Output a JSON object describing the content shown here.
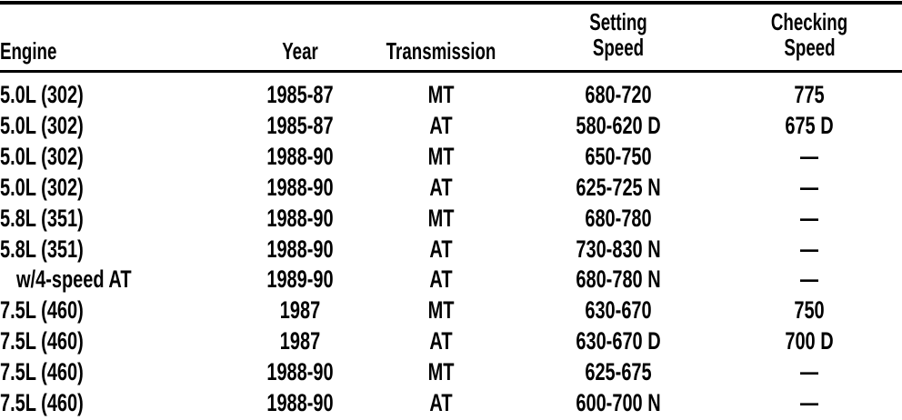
{
  "table": {
    "headers": [
      "Engine",
      "Year",
      "Transmission",
      "Setting Speed",
      "Checking Speed"
    ],
    "header_lines": [
      [
        "Engine"
      ],
      [
        "Year"
      ],
      [
        "Transmission"
      ],
      [
        "Setting",
        "Speed"
      ],
      [
        "Checking",
        "Speed"
      ]
    ],
    "rows": [
      [
        "5.0L (302)",
        "1985-87",
        "MT",
        "680-720",
        "775"
      ],
      [
        "5.0L (302)",
        "1985-87",
        "AT",
        "580-620 D",
        "675 D"
      ],
      [
        "5.0L (302)",
        "1988-90",
        "MT",
        "650-750",
        "—"
      ],
      [
        "5.0L (302)",
        "1988-90",
        "AT",
        "625-725 N",
        "—"
      ],
      [
        "5.8L (351)",
        "1988-90",
        "MT",
        "680-780",
        "—"
      ],
      [
        "5.8L (351)",
        "1988-90",
        "AT",
        "730-830 N",
        "—"
      ],
      [
        "w/4-speed AT",
        "1989-90",
        "AT",
        "680-780 N",
        "—"
      ],
      [
        "7.5L (460)",
        "1987",
        "MT",
        "630-670",
        "750"
      ],
      [
        "7.5L (460)",
        "1987",
        "AT",
        "630-670 D",
        "700 D"
      ],
      [
        "7.5L (460)",
        "1988-90",
        "MT",
        "625-675",
        "—"
      ],
      [
        "7.5L (460)",
        "1988-90",
        "AT",
        "600-700 N",
        "—"
      ]
    ]
  }
}
